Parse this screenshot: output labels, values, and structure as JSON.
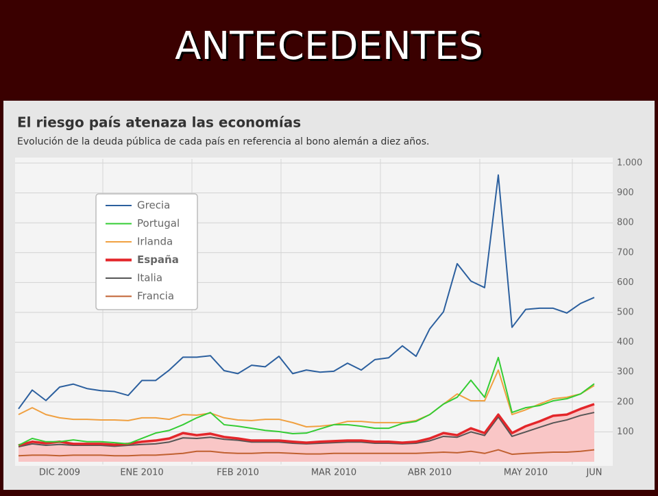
{
  "header": {
    "title": "ANTECEDENTES"
  },
  "chart_data": {
    "type": "line",
    "title": "El riesgo país atenaza las economías",
    "subtitle": "Evolución de la deuda pública de cada país en referencia al bono alemán a diez años.",
    "categories": [
      null,
      null,
      null,
      "DIC 2009",
      null,
      null,
      null,
      null,
      null,
      "ENE 2010",
      null,
      null,
      null,
      null,
      null,
      null,
      "FEB 2010",
      null,
      null,
      null,
      null,
      null,
      null,
      "MAR 2010",
      null,
      null,
      null,
      null,
      null,
      null,
      "ABR 2010",
      null,
      null,
      null,
      null,
      null,
      null,
      "MAY 2010",
      null,
      null,
      null,
      null,
      "JUN"
    ],
    "series": [
      {
        "name": "Grecia",
        "color": "#2b5f9e",
        "values": [
          177,
          240,
          205,
          250,
          260,
          245,
          238,
          235,
          222,
          272,
          272,
          307,
          350,
          350,
          355,
          305,
          295,
          323,
          318,
          353,
          295,
          307,
          300,
          303,
          330,
          307,
          342,
          348,
          388,
          353,
          445,
          502,
          663,
          605,
          583,
          960,
          450,
          510,
          514,
          514,
          498,
          530,
          550
        ]
      },
      {
        "name": "Portugal",
        "color": "#33cc33",
        "values": [
          55,
          78,
          67,
          67,
          73,
          67,
          67,
          64,
          60,
          78,
          96,
          105,
          124,
          147,
          165,
          124,
          119,
          112,
          105,
          101,
          94,
          96,
          110,
          124,
          124,
          119,
          112,
          112,
          128,
          135,
          158,
          193,
          216,
          273,
          216,
          349,
          165,
          181,
          188,
          204,
          211,
          227,
          261
        ]
      },
      {
        "name": "Irlanda",
        "color": "#f0a040",
        "values": [
          158,
          181,
          158,
          147,
          142,
          142,
          140,
          140,
          138,
          147,
          147,
          142,
          158,
          156,
          163,
          147,
          140,
          138,
          142,
          142,
          131,
          117,
          119,
          124,
          135,
          135,
          131,
          131,
          131,
          138,
          158,
          193,
          227,
          204,
          204,
          307,
          158,
          174,
          193,
          211,
          216,
          227,
          255
        ]
      },
      {
        "name": "España",
        "color": "#e3262a",
        "area": true,
        "values": [
          55,
          67,
          62,
          67,
          60,
          60,
          60,
          57,
          60,
          67,
          71,
          78,
          96,
          89,
          94,
          83,
          78,
          71,
          71,
          71,
          67,
          64,
          67,
          69,
          71,
          71,
          67,
          67,
          64,
          67,
          78,
          96,
          89,
          112,
          96,
          158,
          96,
          119,
          135,
          154,
          158,
          177,
          193
        ]
      },
      {
        "name": "Italia",
        "color": "#555555",
        "values": [
          50,
          60,
          55,
          58,
          55,
          55,
          55,
          52,
          55,
          58,
          60,
          66,
          80,
          78,
          82,
          75,
          72,
          66,
          66,
          66,
          62,
          60,
          62,
          64,
          66,
          66,
          62,
          62,
          60,
          62,
          70,
          85,
          82,
          100,
          88,
          150,
          85,
          100,
          115,
          130,
          140,
          155,
          165
        ]
      },
      {
        "name": "Francia",
        "color": "#c06030",
        "values": [
          20,
          22,
          22,
          20,
          22,
          22,
          22,
          20,
          20,
          22,
          22,
          25,
          28,
          35,
          35,
          30,
          28,
          28,
          30,
          30,
          28,
          26,
          26,
          28,
          28,
          28,
          28,
          28,
          28,
          28,
          30,
          32,
          30,
          35,
          28,
          40,
          25,
          28,
          30,
          32,
          32,
          35,
          40
        ]
      }
    ],
    "ylim": [
      0,
      1000
    ],
    "yticks": [
      100,
      200,
      300,
      400,
      500,
      600,
      700,
      800,
      900,
      {
        "value": 1000,
        "label": "1.000"
      }
    ],
    "grid": true,
    "legend": "upper left"
  }
}
